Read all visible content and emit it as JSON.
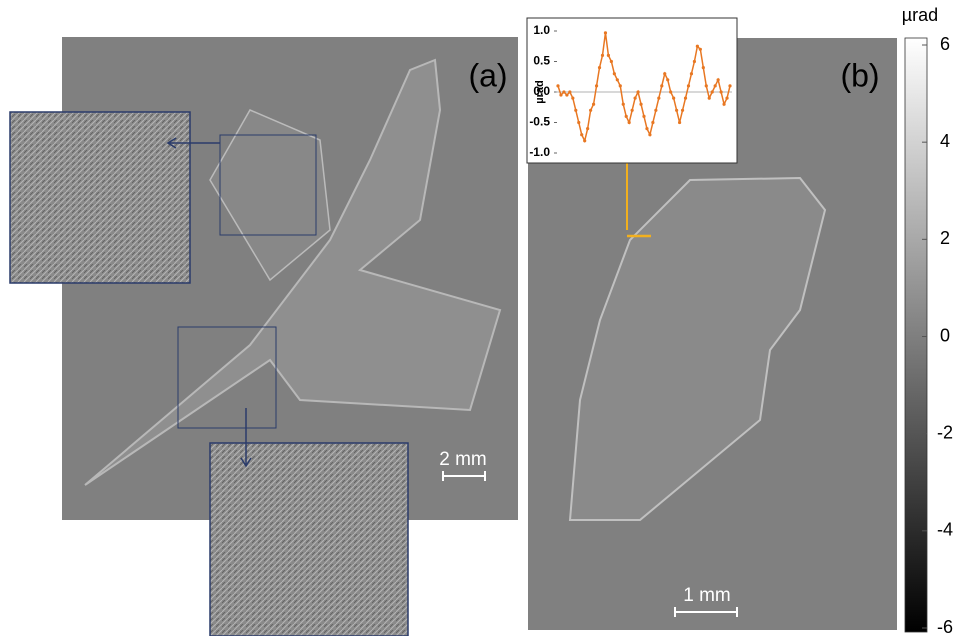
{
  "panels": [
    {
      "label": "(a)",
      "scale_bar": "2 mm"
    },
    {
      "label": "(b)",
      "scale_bar": "1 mm"
    }
  ],
  "chart_data": [
    {
      "type": "line",
      "y_label": "µrad",
      "color": "#e87722",
      "ylim": [
        -1.0,
        1.0
      ],
      "yticks": [
        {
          "value": 1.0,
          "label": "1.0"
        },
        0.5,
        {
          "value": 0.0,
          "label": "0.0"
        },
        -0.5,
        {
          "value": -1.0,
          "label": "-1.0"
        }
      ],
      "values": [
        0.1,
        -0.05,
        0.0,
        -0.05,
        0.0,
        -0.1,
        -0.3,
        -0.5,
        -0.7,
        -0.8,
        -0.6,
        -0.3,
        -0.2,
        0.1,
        0.4,
        0.6,
        0.97,
        0.6,
        0.5,
        0.3,
        0.2,
        0.1,
        -0.2,
        -0.4,
        -0.5,
        -0.3,
        -0.1,
        0.0,
        -0.2,
        -0.4,
        -0.6,
        -0.7,
        -0.5,
        -0.3,
        -0.1,
        0.1,
        0.3,
        0.2,
        0.0,
        -0.1,
        -0.3,
        -0.5,
        -0.3,
        -0.1,
        0.1,
        0.3,
        0.5,
        0.75,
        0.7,
        0.4,
        0.1,
        -0.1,
        0.0,
        0.1,
        0.2,
        0.0,
        -0.2,
        -0.1,
        0.1
      ]
    },
    {
      "type": "colorbar",
      "title": "µrad",
      "ylim": [
        -6,
        6
      ],
      "yticks": [
        6,
        4,
        2,
        0,
        -2,
        -4,
        -6
      ]
    }
  ]
}
